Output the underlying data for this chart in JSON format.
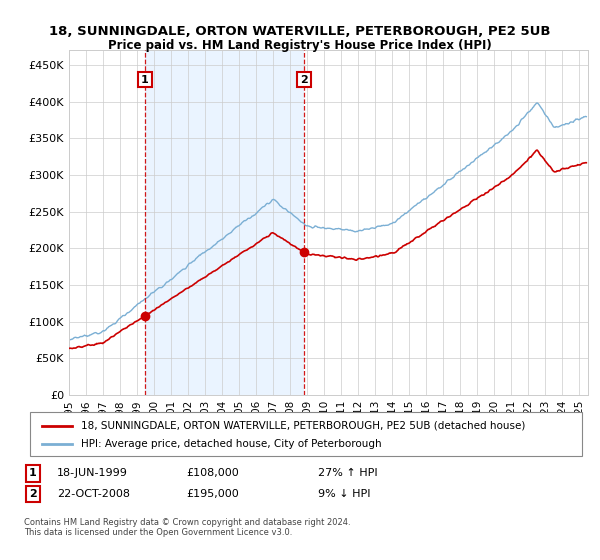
{
  "title": "18, SUNNINGDALE, ORTON WATERVILLE, PETERBOROUGH, PE2 5UB",
  "subtitle": "Price paid vs. HM Land Registry's House Price Index (HPI)",
  "legend_line1": "18, SUNNINGDALE, ORTON WATERVILLE, PETERBOROUGH, PE2 5UB (detached house)",
  "legend_line2": "HPI: Average price, detached house, City of Peterborough",
  "annotation1_label": "1",
  "annotation1_date": "18-JUN-1999",
  "annotation1_price": "£108,000",
  "annotation1_hpi": "27% ↑ HPI",
  "annotation2_label": "2",
  "annotation2_date": "22-OCT-2008",
  "annotation2_price": "£195,000",
  "annotation2_hpi": "9% ↓ HPI",
  "footer": "Contains HM Land Registry data © Crown copyright and database right 2024.\nThis data is licensed under the Open Government Licence v3.0.",
  "sale1_year": 1999.46,
  "sale1_price": 108000,
  "sale2_year": 2008.81,
  "sale2_price": 195000,
  "hpi_color": "#7bafd4",
  "hpi_fill_color": "#d0e4f5",
  "sale_color": "#cc0000",
  "vline_color": "#cc0000",
  "shade_color": "#ddeeff",
  "ylim_min": 0,
  "ylim_max": 470000,
  "xlim_min": 1995,
  "xlim_max": 2025.5,
  "yticks": [
    0,
    50000,
    100000,
    150000,
    200000,
    250000,
    300000,
    350000,
    400000,
    450000
  ],
  "xticks": [
    1995,
    1996,
    1997,
    1998,
    1999,
    2000,
    2001,
    2002,
    2003,
    2004,
    2005,
    2006,
    2007,
    2008,
    2009,
    2010,
    2011,
    2012,
    2013,
    2014,
    2015,
    2016,
    2017,
    2018,
    2019,
    2020,
    2021,
    2022,
    2023,
    2024,
    2025
  ],
  "bg_color": "#ffffff",
  "grid_color": "#cccccc"
}
